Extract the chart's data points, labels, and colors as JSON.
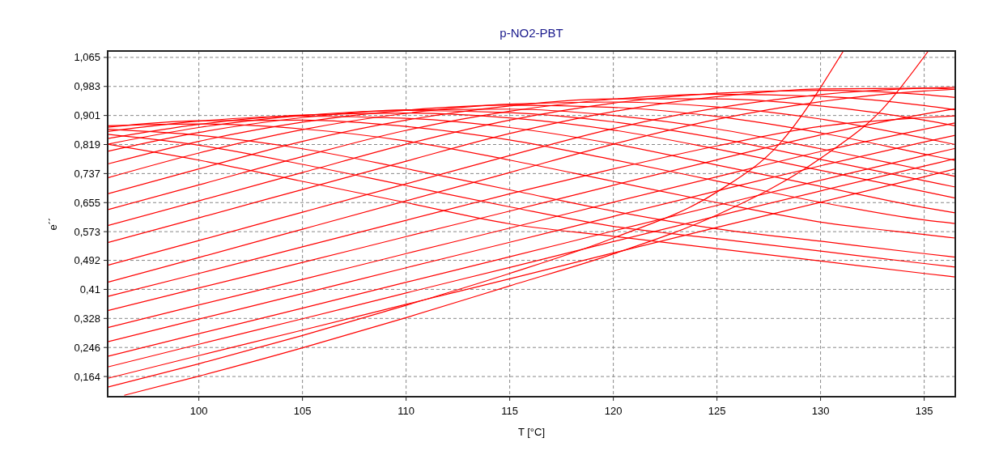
{
  "chart_data": {
    "type": "line",
    "title": "p-NO2-PBT",
    "xlabel": "T [°C]",
    "ylabel": "e´´",
    "x": [
      95.6,
      100,
      105,
      110,
      115,
      120,
      125,
      130,
      135,
      136.5
    ],
    "xlim": [
      95.6,
      136.5
    ],
    "xticks": [
      100,
      105,
      110,
      115,
      120,
      125,
      130,
      135
    ],
    "ylim": [
      0.107,
      1.083
    ],
    "yticks": [
      {
        "value": 0.164,
        "label": "0,164"
      },
      {
        "value": 0.246,
        "label": "0,246"
      },
      {
        "value": 0.328,
        "label": "0,328"
      },
      {
        "value": 0.41,
        "label": "0,41"
      },
      {
        "value": 0.492,
        "label": "0,492"
      },
      {
        "value": 0.573,
        "label": "0,573"
      },
      {
        "value": 0.655,
        "label": "0,655"
      },
      {
        "value": 0.737,
        "label": "0,737"
      },
      {
        "value": 0.819,
        "label": "0,819"
      },
      {
        "value": 0.901,
        "label": "0,901"
      },
      {
        "value": 0.983,
        "label": "0,983"
      },
      {
        "value": 1.065,
        "label": "1,065"
      }
    ],
    "grid": true,
    "line_style": "solid",
    "series": [
      {
        "color": "#ff0000",
        "values": [
          0.82,
          0.775,
          0.715,
          0.655,
          0.595,
          0.56,
          0.525,
          0.49,
          0.455,
          0.445
        ]
      },
      {
        "color": "#ff0000",
        "values": [
          0.848,
          0.817,
          0.763,
          0.703,
          0.643,
          0.588,
          0.553,
          0.518,
          0.483,
          0.473
        ]
      },
      {
        "color": "#ff0000",
        "values": [
          0.862,
          0.845,
          0.807,
          0.751,
          0.691,
          0.631,
          0.581,
          0.546,
          0.511,
          0.501
        ]
      },
      {
        "color": "#ff0000",
        "values": [
          0.872,
          0.877,
          0.863,
          0.829,
          0.775,
          0.715,
          0.655,
          0.6,
          0.565,
          0.555
        ]
      },
      {
        "color": "#ff0000",
        "values": [
          0.868,
          0.886,
          0.888,
          0.87,
          0.832,
          0.776,
          0.716,
          0.656,
          0.606,
          0.596
        ]
      },
      {
        "color": "#ff0000",
        "values": [
          0.856,
          0.885,
          0.899,
          0.893,
          0.867,
          0.821,
          0.761,
          0.701,
          0.641,
          0.626
        ]
      },
      {
        "color": "#ff0000",
        "values": [
          0.836,
          0.876,
          0.902,
          0.908,
          0.894,
          0.86,
          0.806,
          0.746,
          0.686,
          0.668
        ]
      },
      {
        "color": "#ff0000",
        "values": [
          0.82,
          0.867,
          0.901,
          0.915,
          0.909,
          0.883,
          0.837,
          0.777,
          0.717,
          0.699
        ]
      },
      {
        "color": "#ff0000",
        "values": [
          0.8,
          0.853,
          0.895,
          0.917,
          0.919,
          0.901,
          0.863,
          0.807,
          0.747,
          0.729
        ]
      },
      {
        "color": "#ff0000",
        "values": [
          0.764,
          0.828,
          0.882,
          0.916,
          0.93,
          0.924,
          0.898,
          0.852,
          0.792,
          0.774
        ]
      },
      {
        "color": "#ff0000",
        "values": [
          0.725,
          0.795,
          0.861,
          0.907,
          0.933,
          0.939,
          0.925,
          0.891,
          0.837,
          0.819
        ]
      },
      {
        "color": "#ff0000",
        "values": [
          0.68,
          0.75,
          0.828,
          0.888,
          0.928,
          0.948,
          0.948,
          0.928,
          0.888,
          0.872
        ]
      },
      {
        "color": "#ff0000",
        "values": [
          0.635,
          0.705,
          0.785,
          0.859,
          0.913,
          0.947,
          0.961,
          0.955,
          0.929,
          0.917
        ]
      },
      {
        "color": "#ff0000",
        "values": [
          0.59,
          0.66,
          0.74,
          0.82,
          0.888,
          0.936,
          0.964,
          0.972,
          0.96,
          0.952
        ]
      },
      {
        "color": "#ff0000",
        "values": [
          0.542,
          0.612,
          0.692,
          0.772,
          0.85,
          0.912,
          0.954,
          0.976,
          0.978,
          0.975
        ]
      },
      {
        "color": "#ff0000",
        "values": [
          0.478,
          0.548,
          0.628,
          0.708,
          0.788,
          0.864,
          0.922,
          0.96,
          0.978,
          0.98
        ]
      },
      {
        "color": "#ff0000",
        "values": [
          0.43,
          0.5,
          0.58,
          0.66,
          0.74,
          0.82,
          0.89,
          0.94,
          0.97,
          0.975
        ]
      },
      {
        "color": "#ff0000",
        "values": [
          0.39,
          0.455,
          0.53,
          0.605,
          0.68,
          0.75,
          0.815,
          0.87,
          0.895,
          0.9
        ]
      },
      {
        "color": "#ff0000",
        "values": [
          0.35,
          0.414,
          0.486,
          0.559,
          0.631,
          0.704,
          0.776,
          0.846,
          0.905,
          0.92
        ]
      },
      {
        "color": "#ff0000",
        "values": [
          0.302,
          0.366,
          0.438,
          0.511,
          0.583,
          0.656,
          0.728,
          0.799,
          0.862,
          0.88
        ]
      },
      {
        "color": "#ff0000",
        "values": [
          0.262,
          0.326,
          0.398,
          0.471,
          0.543,
          0.616,
          0.688,
          0.759,
          0.826,
          0.845
        ]
      },
      {
        "color": "#ff0000",
        "values": [
          0.221,
          0.285,
          0.357,
          0.43,
          0.502,
          0.575,
          0.647,
          0.718,
          0.788,
          0.808
        ]
      },
      {
        "color": "#ff0000",
        "values": [
          0.191,
          0.255,
          0.327,
          0.4,
          0.472,
          0.545,
          0.617,
          0.688,
          0.758,
          0.779
        ]
      },
      {
        "color": "#ff0000",
        "values": [
          0.159,
          0.223,
          0.295,
          0.368,
          0.44,
          0.513,
          0.585,
          0.656,
          0.728,
          0.75
        ]
      },
      {
        "color": "#ff0000",
        "x": [
          95.6,
          100,
          105,
          110,
          115,
          120,
          125,
          128,
          131.1
        ],
        "values": [
          0.134,
          0.2,
          0.28,
          0.365,
          0.455,
          0.555,
          0.685,
          0.82,
          1.083
        ]
      },
      {
        "color": "#ff0000",
        "x": [
          96.4,
          100,
          105,
          110,
          115,
          120,
          125,
          130,
          133,
          135.2
        ],
        "values": [
          0.111,
          0.165,
          0.245,
          0.33,
          0.42,
          0.51,
          0.62,
          0.78,
          0.92,
          1.083
        ]
      }
    ]
  }
}
